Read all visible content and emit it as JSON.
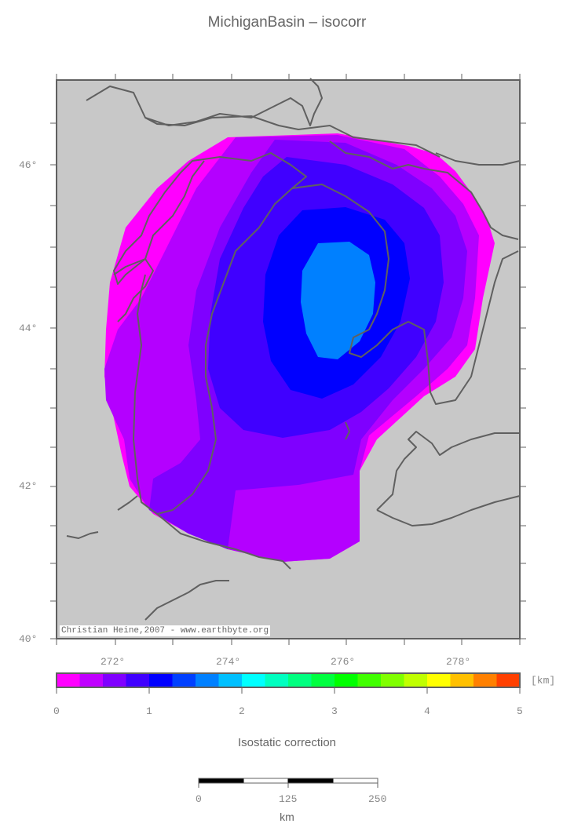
{
  "title": "MichiganBasin – isocorr",
  "credit": "Christian Heine,2007 - www.earthbyte.org",
  "map": {
    "background_color": "#c8c8c8",
    "coastline_color": "#606060",
    "lon_labels": [
      "272°",
      "274°",
      "276°",
      "278°"
    ],
    "lat_labels": [
      "46°",
      "44°",
      "42°",
      "40°"
    ],
    "bands": [
      {
        "name": "outer",
        "color": "#ff00ff"
      },
      {
        "name": "ring-1",
        "color": "#b400ff"
      },
      {
        "name": "ring-2",
        "color": "#7f00ff"
      },
      {
        "name": "ring-3",
        "color": "#4000ff"
      },
      {
        "name": "ring-4",
        "color": "#0000ff"
      },
      {
        "name": "core",
        "color": "#0080ff"
      }
    ]
  },
  "colorbar": {
    "colors": [
      "#ff00ff",
      "#c000ff",
      "#8000ff",
      "#4000ff",
      "#0000ff",
      "#0040ff",
      "#0080ff",
      "#00c0ff",
      "#00ffff",
      "#00ffc0",
      "#00ff80",
      "#00ff40",
      "#00ff00",
      "#40ff00",
      "#80ff00",
      "#c0ff00",
      "#ffff00",
      "#ffc000",
      "#ff8000",
      "#ff4000"
    ],
    "tick_labels": [
      "0",
      "1",
      "2",
      "3",
      "4",
      "5"
    ],
    "unit": "[km]",
    "title": "Isostatic correction"
  },
  "scalebar": {
    "tick_labels": [
      "0",
      "125",
      "250"
    ],
    "unit": "km"
  }
}
